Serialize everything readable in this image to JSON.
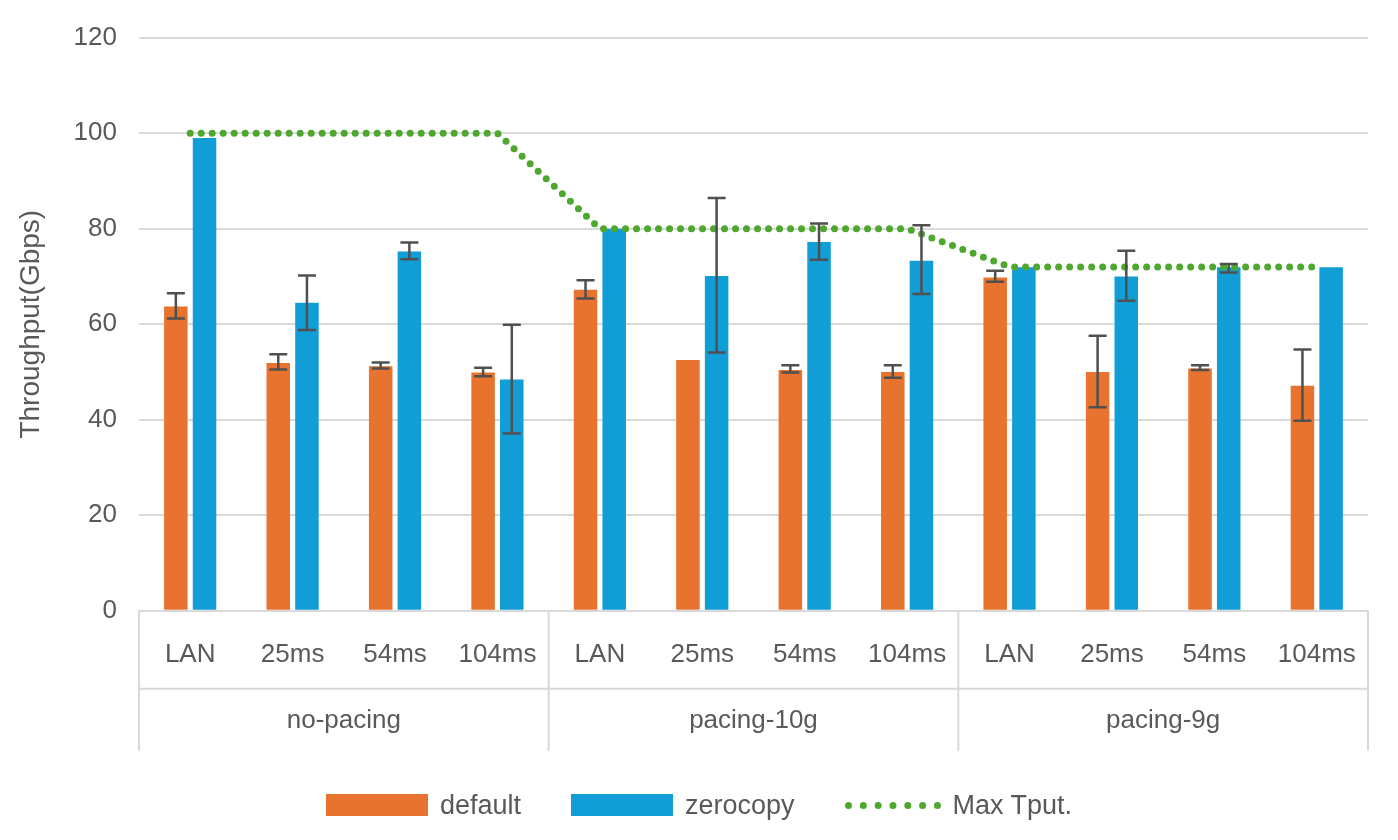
{
  "chart_data": {
    "type": "bar",
    "ylabel": "Throughput(Gbps)",
    "categories": [
      "LAN",
      "25ms",
      "54ms",
      "104ms",
      "LAN",
      "25ms",
      "54ms",
      "104ms",
      "LAN",
      "25ms",
      "54ms",
      "104ms"
    ],
    "annotations": [
      "no-pacing",
      "pacing-10g",
      "pacing-9g"
    ],
    "series": [
      {
        "name": "default",
        "color": "#e8732f",
        "values": [
          63.7,
          51.9,
          51.2,
          49.9,
          67.2,
          52.5,
          50.4,
          50.0,
          69.8,
          50.0,
          50.7,
          47.1
        ],
        "errors": [
          [
            61.2,
            66.5
          ],
          [
            50.5,
            53.7
          ],
          [
            50.7,
            52.0
          ],
          [
            49.1,
            50.9
          ],
          [
            65.4,
            69.2
          ],
          null,
          [
            49.9,
            51.4
          ],
          [
            48.8,
            51.4
          ],
          [
            68.9,
            71.2
          ],
          [
            42.6,
            57.6
          ],
          [
            50.4,
            51.4
          ],
          [
            39.8,
            54.7
          ]
        ]
      },
      {
        "name": "zerocopy",
        "color": "#119ed6",
        "values": [
          99.0,
          64.5,
          75.2,
          48.4,
          80.0,
          70.1,
          77.2,
          73.3,
          71.9,
          70.0,
          71.9,
          71.9
        ],
        "errors": [
          null,
          [
            58.8,
            70.2
          ],
          [
            73.6,
            77.1
          ],
          [
            37.1,
            59.9
          ],
          null,
          [
            54.1,
            86.4
          ],
          [
            73.5,
            81.1
          ],
          [
            66.3,
            80.7
          ],
          null,
          [
            64.9,
            75.4
          ],
          [
            70.8,
            72.6
          ],
          null
        ]
      },
      {
        "name": "Max Tput.",
        "type": "line",
        "color": "#4ea72e",
        "line_style": "dotted",
        "marker": "none",
        "values": [
          100,
          100,
          100,
          100,
          80,
          80,
          80,
          80,
          72,
          72,
          72,
          72
        ]
      }
    ],
    "ylim": [
      0,
      120
    ],
    "yticks": [
      0,
      20,
      40,
      60,
      80,
      100,
      120
    ],
    "grid": "y",
    "legend": "bottom"
  }
}
